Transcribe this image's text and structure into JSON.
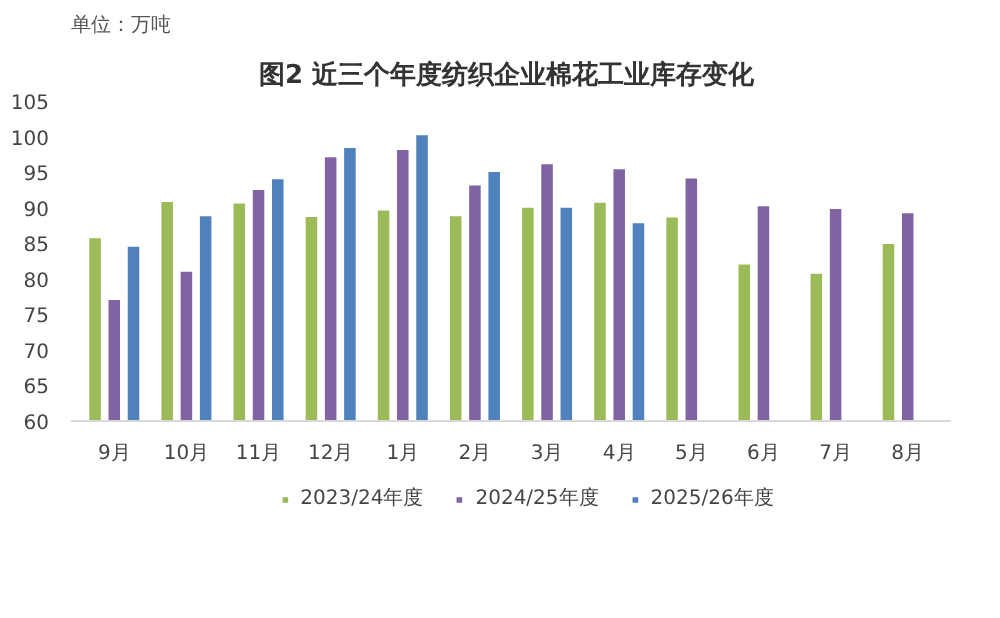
{
  "chart_data": {
    "type": "bar",
    "title": "图2  近三个年度纺织企业棉花工业库存变化",
    "ylabel": "单位：万吨",
    "categories": [
      "9月",
      "10月",
      "11月",
      "12月",
      "1月",
      "2月",
      "3月",
      "4月",
      "5月",
      "6月",
      "7月",
      "8月"
    ],
    "series": [
      {
        "name": "2023/24年度",
        "color": "#9bbb59",
        "values": [
          85.7,
          90.8,
          90.6,
          88.7,
          89.6,
          88.8,
          90.0,
          90.7,
          88.6,
          82,
          80.7,
          84.9
        ]
      },
      {
        "name": "2024/25年度",
        "color": "#8064a2",
        "values": [
          77,
          81,
          92.5,
          97.1,
          98.1,
          93.1,
          96.1,
          95.4,
          94.1,
          90.2,
          89.8,
          89.2
        ]
      },
      {
        "name": "2025/26年度",
        "color": "#4f81bd",
        "values": [
          84.5,
          88.8,
          94.0,
          98.4,
          100.2,
          95.0,
          90.0,
          87.8,
          null,
          null,
          null,
          null
        ]
      }
    ],
    "ylim": [
      60,
      105
    ],
    "yticks": [
      60,
      65,
      70,
      75,
      80,
      85,
      90,
      95,
      100,
      105
    ],
    "grid": false,
    "legend": "bottom"
  }
}
